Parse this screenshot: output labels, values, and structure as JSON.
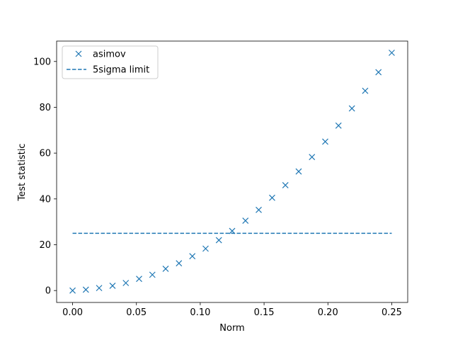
{
  "chart_data": {
    "type": "scatter",
    "xlabel": "Norm",
    "ylabel": "Test statistic",
    "xlim": [
      -0.0125,
      0.2625
    ],
    "ylim": [
      -5.2,
      108.9
    ],
    "xticks": [
      0.0,
      0.05,
      0.1,
      0.15,
      0.2,
      0.25
    ],
    "xtick_labels": [
      "0.00",
      "0.05",
      "0.10",
      "0.15",
      "0.20",
      "0.25"
    ],
    "yticks": [
      0,
      20,
      40,
      60,
      80,
      100
    ],
    "ytick_labels": [
      "0",
      "20",
      "40",
      "60",
      "80",
      "100"
    ],
    "grid": false,
    "legend_position": "top-left",
    "colors": {
      "series": "#1f77b4"
    },
    "series": [
      {
        "name": "asimov",
        "marker": "x",
        "x": [
          0.0,
          0.0104,
          0.0208,
          0.0313,
          0.0417,
          0.0521,
          0.0625,
          0.0729,
          0.0833,
          0.0938,
          0.1042,
          0.1146,
          0.125,
          0.1354,
          0.1458,
          0.1563,
          0.1667,
          0.1771,
          0.1875,
          0.1979,
          0.2083,
          0.2188,
          0.2292,
          0.2396,
          0.25
        ],
        "y": [
          0.0,
          0.4,
          1.1,
          2.1,
          3.3,
          5.1,
          6.9,
          9.5,
          11.9,
          15.0,
          18.3,
          22.0,
          26.0,
          30.5,
          35.2,
          40.5,
          46.0,
          52.0,
          58.3,
          65.0,
          72.0,
          79.5,
          87.2,
          95.3,
          103.8
        ]
      },
      {
        "name": "5sigma limit",
        "line": "dashed",
        "x": [
          0.0,
          0.25
        ],
        "y": [
          25,
          25
        ]
      }
    ]
  }
}
